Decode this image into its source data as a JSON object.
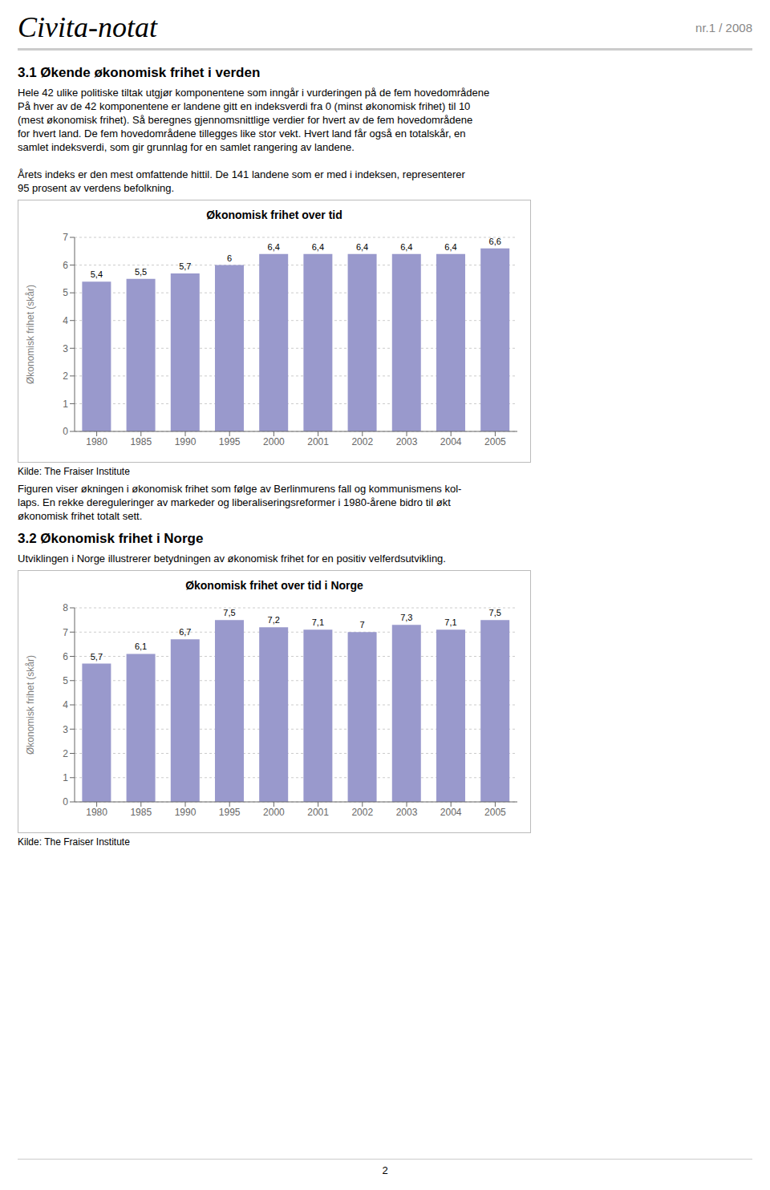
{
  "page": {
    "title": "Civita-notat",
    "page_number": "nr.1 / 2008",
    "footer": "2"
  },
  "chart_data": [
    {
      "type": "bar",
      "heading": "3.1 Økende økonomisk frihet i verden",
      "text_before": [
        [
          "Hele 42 ulike politiske tiltak utgjør komponentene som inngår i vurderingen på de fem hovedområdene",
          "På hver av de 42 komponentene er landene gitt en indeksverdi fra 0 (minst økonomisk frihet) til 10",
          "(mest økonomisk frihet). Så beregnes gjennomsnittlige verdier for hvert av de fem hovedområdene",
          "for hvert land. De fem hovedområdene tillegges like stor vekt. Hvert land får også en totalskår, en",
          "samlet indeksverdi, som gir grunnlag for en samlet rangering av landene."
        ],
        [
          "Årets indeks er den mest omfattende hittil. De 141 landene som er med i indeksen, representerer",
          "95 prosent av verdens befolkning."
        ]
      ],
      "title": "Økonomisk frihet over tid",
      "ylabel": "Økonomisk frihet (skår)",
      "categories": [
        "1980",
        "1985",
        "1990",
        "1995",
        "2000",
        "2001",
        "2002",
        "2003",
        "2004",
        "2005"
      ],
      "values": [
        5.4,
        5.5,
        5.7,
        6.0,
        6.4,
        6.4,
        6.4,
        6.4,
        6.4,
        6.6
      ],
      "value_labels": [
        "5,4",
        "5,5",
        "5,7",
        "6",
        "6,4",
        "6,4",
        "6,4",
        "6,4",
        "6,4",
        "6,6"
      ],
      "data_labels": true,
      "color": "#9999CC",
      "ylim": [
        0,
        7
      ],
      "yticks": [
        0,
        1,
        2,
        3,
        4,
        5,
        6,
        7
      ],
      "grid": true,
      "source": "Kilde: The Fraiser Institute",
      "text_after": [
        [
          "Figuren viser økningen i økonomisk frihet som følge av Berlinmurens fall og kommunismens kol-",
          "laps. En rekke dereguleringer av markeder og liberaliseringsreformer i 1980-årene bidro til økt",
          "økonomisk frihet totalt sett."
        ]
      ]
    },
    {
      "type": "bar",
      "heading": "3.2 Økonomisk frihet i Norge",
      "text_before": [
        [
          "Utviklingen i Norge illustrerer betydningen av økonomisk frihet for en positiv velferdsutvikling."
        ]
      ],
      "title": "Økonomisk frihet over tid i Norge",
      "ylabel": "Økonomisk frihet (skår)",
      "categories": [
        "1980",
        "1985",
        "1990",
        "1995",
        "2000",
        "2001",
        "2002",
        "2003",
        "2004",
        "2005"
      ],
      "values": [
        5.7,
        6.1,
        6.7,
        7.5,
        7.2,
        7.1,
        7.0,
        7.3,
        7.1,
        7.5
      ],
      "value_labels": [
        "5,7",
        "6,1",
        "6,7",
        "7,5",
        "7,2",
        "7,1",
        "7",
        "7,3",
        "7,1",
        "7,5"
      ],
      "data_labels": true,
      "color": "#9999CC",
      "ylim": [
        0,
        8
      ],
      "yticks": [
        0,
        1,
        2,
        3,
        4,
        5,
        6,
        7,
        8
      ],
      "grid": true,
      "source": "Kilde: The Fraiser Institute",
      "text_after": []
    }
  ]
}
